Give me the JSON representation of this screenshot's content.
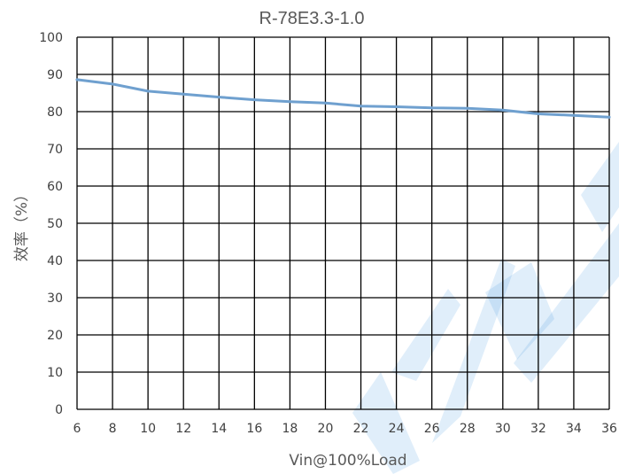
{
  "chart_data": {
    "type": "line",
    "title": "R-78E3.3-1.0",
    "xlabel": "Vin@100%Load",
    "ylabel": "效率（%）",
    "xlim": [
      6,
      36
    ],
    "ylim": [
      0,
      100
    ],
    "xticks": [
      6,
      8,
      10,
      12,
      14,
      16,
      18,
      20,
      22,
      24,
      26,
      28,
      30,
      32,
      34,
      36
    ],
    "yticks": [
      0,
      10,
      20,
      30,
      40,
      50,
      60,
      70,
      80,
      90,
      100
    ],
    "grid": true,
    "legend": "none",
    "series": [
      {
        "x": [
          6,
          8,
          10,
          12,
          14,
          16,
          18,
          20,
          22,
          24,
          26,
          28,
          30,
          32,
          34,
          36
        ],
        "y": [
          88.6,
          87.4,
          85.5,
          84.7,
          83.9,
          83.2,
          82.7,
          82.3,
          81.5,
          81.3,
          81.0,
          80.9,
          80.4,
          79.4,
          79.0,
          78.5
        ],
        "color": "#6fa0cf"
      }
    ]
  }
}
